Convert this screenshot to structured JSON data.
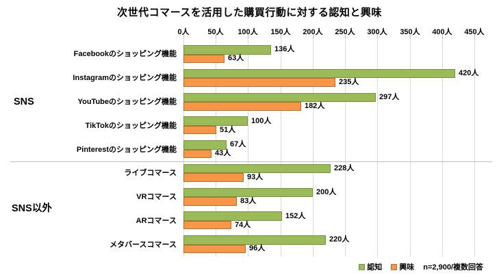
{
  "chart_data": {
    "type": "bar",
    "orientation": "horizontal",
    "title": "次世代コマースを活用した購買行動に対する認知と興味",
    "unit": "人",
    "axis": {
      "min": 0,
      "max": 450,
      "step": 50,
      "tick_suffix": "人"
    },
    "grid": true,
    "legend_position": "bottom-right",
    "series": [
      {
        "name": "認知",
        "fill": "#9bbb59",
        "border": "#76923c"
      },
      {
        "name": "興味",
        "fill": "#f79646",
        "border": "#b66d31"
      }
    ],
    "groups": [
      {
        "label": "SNS",
        "items": [
          {
            "label": "Facebookのショッピング機能",
            "values": [
              136,
              63
            ]
          },
          {
            "label": "Instagramのショッピング機能",
            "values": [
              420,
              235
            ]
          },
          {
            "label": "YouTubeのショッピング機能",
            "values": [
              297,
              182
            ]
          },
          {
            "label": "TikTokのショッピング機能",
            "values": [
              100,
              51
            ]
          },
          {
            "label": "Pinterestのショッピング機能",
            "values": [
              67,
              43
            ]
          }
        ]
      },
      {
        "label": "SNS以外",
        "items": [
          {
            "label": "ライブコマース",
            "values": [
              228,
              93
            ]
          },
          {
            "label": "VRコマース",
            "values": [
              200,
              83
            ]
          },
          {
            "label": "ARコマース",
            "values": [
              152,
              74
            ]
          },
          {
            "label": "メタバースコマース",
            "values": [
              220,
              96
            ]
          }
        ]
      }
    ],
    "note": "n=2,900/複数回答"
  }
}
